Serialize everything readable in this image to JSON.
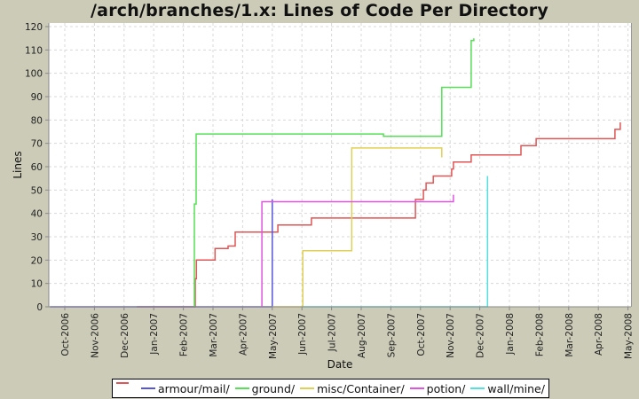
{
  "chart_data": {
    "type": "line",
    "title": "/arch/branches/1.x: Lines of Code Per Directory",
    "xlabel": "Date",
    "ylabel": "Lines",
    "ylim": [
      0,
      120
    ],
    "yticks": [
      0,
      10,
      20,
      30,
      40,
      50,
      60,
      70,
      80,
      90,
      100,
      110,
      120
    ],
    "xticks": [
      "Oct-2006",
      "Nov-2006",
      "Dec-2006",
      "Jan-2007",
      "Feb-2007",
      "Mar-2007",
      "Apr-2007",
      "May-2007",
      "Jun-2007",
      "Jul-2007",
      "Aug-2007",
      "Sep-2007",
      "Oct-2007",
      "Nov-2007",
      "Dec-2007",
      "Jan-2008",
      "Feb-2008",
      "Mar-2008",
      "Apr-2008",
      "May-2008"
    ],
    "x_unit": "months since Oct-2006",
    "grid": true,
    "legend_position": "bottom",
    "series": [
      {
        "name": "",
        "color": "#e05555",
        "points": [
          [
            2.43,
            0
          ],
          [
            4.4,
            0
          ],
          [
            4.4,
            12
          ],
          [
            4.44,
            12
          ],
          [
            4.44,
            20
          ],
          [
            5.07,
            20
          ],
          [
            5.07,
            25
          ],
          [
            5.51,
            25
          ],
          [
            5.51,
            26
          ],
          [
            5.75,
            26
          ],
          [
            5.75,
            32
          ],
          [
            7.19,
            32
          ],
          [
            7.19,
            35
          ],
          [
            8.32,
            35
          ],
          [
            8.32,
            38
          ],
          [
            11.83,
            38
          ],
          [
            11.83,
            46
          ],
          [
            12.1,
            46
          ],
          [
            12.1,
            50
          ],
          [
            12.19,
            50
          ],
          [
            12.19,
            53
          ],
          [
            12.43,
            53
          ],
          [
            12.43,
            56
          ],
          [
            13.05,
            56
          ],
          [
            13.05,
            59
          ],
          [
            13.11,
            59
          ],
          [
            13.11,
            62
          ],
          [
            13.71,
            62
          ],
          [
            13.71,
            65
          ],
          [
            15.39,
            65
          ],
          [
            15.39,
            69
          ],
          [
            15.9,
            69
          ],
          [
            15.9,
            72
          ],
          [
            18.56,
            72
          ],
          [
            18.56,
            76
          ],
          [
            18.74,
            76
          ],
          [
            18.74,
            79
          ]
        ]
      },
      {
        "name": "armour/mail/",
        "color": "#5555e0",
        "points": [
          [
            -0.5,
            0
          ],
          [
            2.43,
            0
          ],
          [
            4.4,
            0
          ],
          [
            6.95,
            0
          ],
          [
            6.95,
            0
          ],
          [
            7.0,
            0
          ],
          [
            7.0,
            46
          ]
        ]
      },
      {
        "name": "ground/",
        "color": "#55e055",
        "points": [
          [
            4.37,
            0
          ],
          [
            4.37,
            44
          ],
          [
            4.43,
            44
          ],
          [
            4.43,
            74
          ],
          [
            10.75,
            74
          ],
          [
            10.75,
            73
          ],
          [
            12.72,
            73
          ],
          [
            12.72,
            94
          ],
          [
            13.71,
            94
          ],
          [
            13.71,
            114
          ],
          [
            13.8,
            114
          ],
          [
            13.8,
            115
          ]
        ]
      },
      {
        "name": "misc/Container/",
        "color": "#e0d055",
        "points": [
          [
            7.0,
            0
          ],
          [
            8.03,
            0
          ],
          [
            8.03,
            24
          ],
          [
            9.68,
            24
          ],
          [
            9.68,
            68
          ],
          [
            12.72,
            68
          ],
          [
            12.72,
            64
          ]
        ]
      },
      {
        "name": "potion/",
        "color": "#e055e0",
        "points": [
          [
            6.65,
            0
          ],
          [
            6.65,
            45
          ],
          [
            13.11,
            45
          ],
          [
            13.11,
            48
          ]
        ]
      },
      {
        "name": "wall/mine/",
        "color": "#55e0e0",
        "points": [
          [
            8.03,
            0
          ],
          [
            14.26,
            0
          ],
          [
            14.26,
            56
          ]
        ]
      }
    ]
  },
  "legend": {
    "items": [
      {
        "label": "",
        "color": "#e05555"
      },
      {
        "label": "armour/mail/",
        "color": "#5555e0"
      },
      {
        "label": "ground/",
        "color": "#55e055"
      },
      {
        "label": "misc/Container/",
        "color": "#e0d055"
      },
      {
        "label": "potion/",
        "color": "#e055e0"
      },
      {
        "label": "wall/mine/",
        "color": "#55e0e0"
      }
    ]
  }
}
